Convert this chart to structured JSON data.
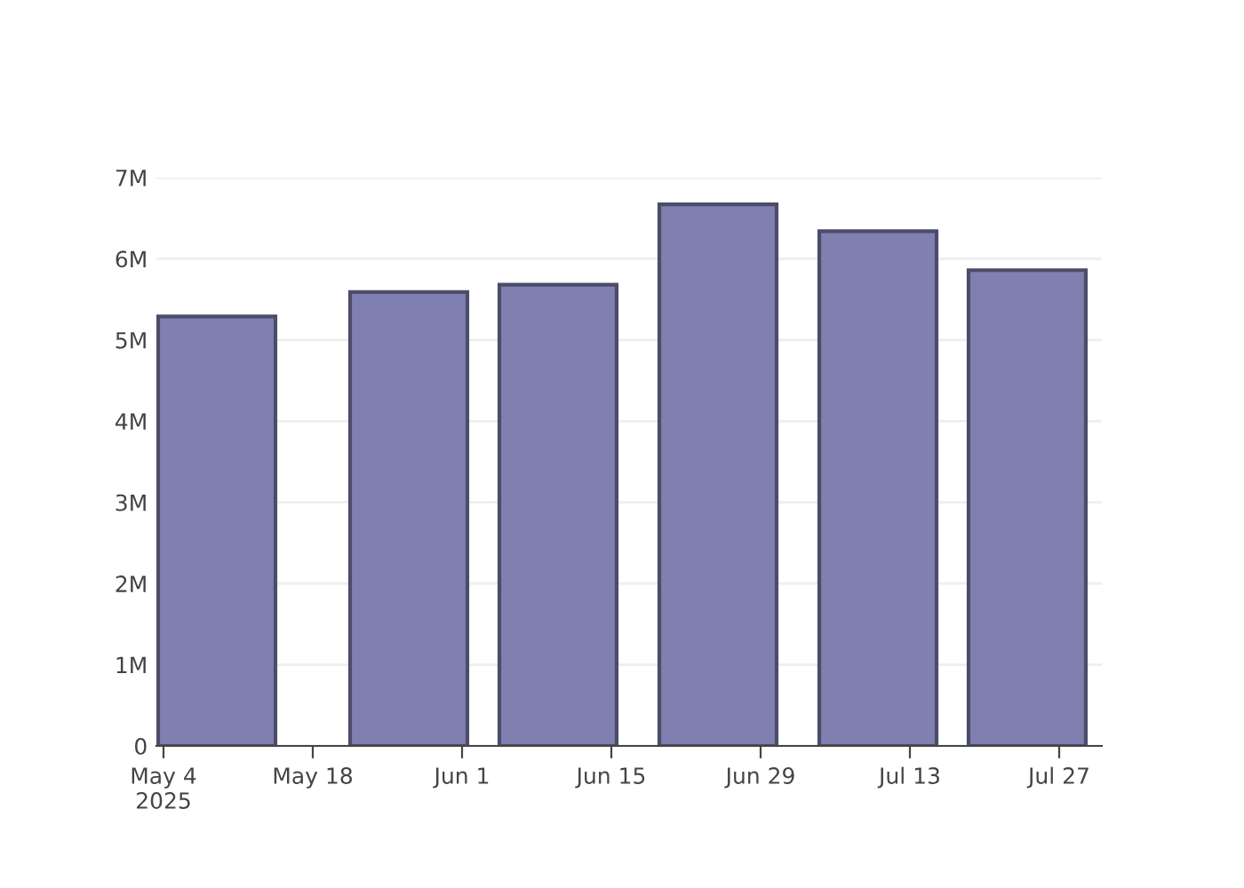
{
  "chart_data": {
    "type": "bar",
    "x": [
      "2025-05-09",
      "2025-05-27",
      "2025-06-10",
      "2025-06-25",
      "2025-07-10",
      "2025-07-24"
    ],
    "values": [
      5290000,
      5590000,
      5680000,
      6670000,
      6340000,
      5860000
    ],
    "color": "#7f7fb0",
    "xlim": [
      "2025-05-03T08:00",
      "2025-07-31"
    ],
    "xticks": [
      {
        "value": "2025-05-04",
        "label": "May 4\n2025"
      },
      {
        "value": "2025-05-18",
        "label": "May 18"
      },
      {
        "value": "2025-06-01",
        "label": "Jun 1"
      },
      {
        "value": "2025-06-15",
        "label": "Jun 15"
      },
      {
        "value": "2025-06-29",
        "label": "Jun 29"
      },
      {
        "value": "2025-07-13",
        "label": "Jul 13"
      },
      {
        "value": "2025-07-27",
        "label": "Jul 27"
      }
    ],
    "ylim": [
      0,
      7000000
    ],
    "yticks": [
      {
        "value": 0,
        "label": "0"
      },
      {
        "value": 1000000,
        "label": "1M"
      },
      {
        "value": 2000000,
        "label": "2M"
      },
      {
        "value": 3000000,
        "label": "3M"
      },
      {
        "value": 4000000,
        "label": "4M"
      },
      {
        "value": 5000000,
        "label": "5M"
      },
      {
        "value": 6000000,
        "label": "6M"
      },
      {
        "value": 7000000,
        "label": "7M"
      }
    ],
    "grid": "y"
  }
}
